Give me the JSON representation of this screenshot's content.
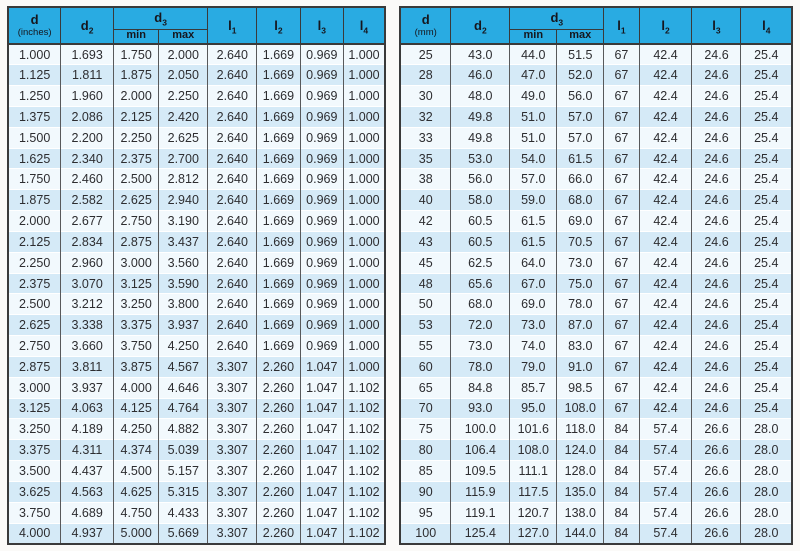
{
  "colors": {
    "header_bg": "#29ABE2",
    "row_light": "#F2F9FD",
    "row_blue": "#D5EAF7",
    "border_dark": "#3A3A3A",
    "page_bg": "#FBFAF8"
  },
  "tables": [
    {
      "id": "inches-table",
      "header": {
        "d_label": "d",
        "d_unit": "(inches)",
        "d2_label": "d",
        "d2_sub": "2",
        "d3_label": "d",
        "d3_sub": "3",
        "min_label": "min",
        "max_label": "max",
        "l1_label": "l",
        "l1_sub": "1",
        "l2_label": "l",
        "l2_sub": "2",
        "l3_label": "l",
        "l3_sub": "3",
        "l4_label": "l",
        "l4_sub": "4"
      },
      "rows": [
        [
          "1.000",
          "1.693",
          "1.750",
          "2.000",
          "2.640",
          "1.669",
          "0.969",
          "1.000"
        ],
        [
          "1.125",
          "1.811",
          "1.875",
          "2.050",
          "2.640",
          "1.669",
          "0.969",
          "1.000"
        ],
        [
          "1.250",
          "1.960",
          "2.000",
          "2.250",
          "2.640",
          "1.669",
          "0.969",
          "1.000"
        ],
        [
          "1.375",
          "2.086",
          "2.125",
          "2.420",
          "2.640",
          "1.669",
          "0.969",
          "1.000"
        ],
        [
          "1.500",
          "2.200",
          "2.250",
          "2.625",
          "2.640",
          "1.669",
          "0.969",
          "1.000"
        ],
        [
          "1.625",
          "2.340",
          "2.375",
          "2.700",
          "2.640",
          "1.669",
          "0.969",
          "1.000"
        ],
        [
          "1.750",
          "2.460",
          "2.500",
          "2.812",
          "2.640",
          "1.669",
          "0.969",
          "1.000"
        ],
        [
          "1.875",
          "2.582",
          "2.625",
          "2.940",
          "2.640",
          "1.669",
          "0.969",
          "1.000"
        ],
        [
          "2.000",
          "2.677",
          "2.750",
          "3.190",
          "2.640",
          "1.669",
          "0.969",
          "1.000"
        ],
        [
          "2.125",
          "2.834",
          "2.875",
          "3.437",
          "2.640",
          "1.669",
          "0.969",
          "1.000"
        ],
        [
          "2.250",
          "2.960",
          "3.000",
          "3.560",
          "2.640",
          "1.669",
          "0.969",
          "1.000"
        ],
        [
          "2.375",
          "3.070",
          "3.125",
          "3.590",
          "2.640",
          "1.669",
          "0.969",
          "1.000"
        ],
        [
          "2.500",
          "3.212",
          "3.250",
          "3.800",
          "2.640",
          "1.669",
          "0.969",
          "1.000"
        ],
        [
          "2.625",
          "3.338",
          "3.375",
          "3.937",
          "2.640",
          "1.669",
          "0.969",
          "1.000"
        ],
        [
          "2.750",
          "3.660",
          "3.750",
          "4.250",
          "2.640",
          "1.669",
          "0.969",
          "1.000"
        ],
        [
          "2.875",
          "3.811",
          "3.875",
          "4.567",
          "3.307",
          "2.260",
          "1.047",
          "1.000"
        ],
        [
          "3.000",
          "3.937",
          "4.000",
          "4.646",
          "3.307",
          "2.260",
          "1.047",
          "1.102"
        ],
        [
          "3.125",
          "4.063",
          "4.125",
          "4.764",
          "3.307",
          "2.260",
          "1.047",
          "1.102"
        ],
        [
          "3.250",
          "4.189",
          "4.250",
          "4.882",
          "3.307",
          "2.260",
          "1.047",
          "1.102"
        ],
        [
          "3.375",
          "4.311",
          "4.374",
          "5.039",
          "3.307",
          "2.260",
          "1.047",
          "1.102"
        ],
        [
          "3.500",
          "4.437",
          "4.500",
          "5.157",
          "3.307",
          "2.260",
          "1.047",
          "1.102"
        ],
        [
          "3.625",
          "4.563",
          "4.625",
          "5.315",
          "3.307",
          "2.260",
          "1.047",
          "1.102"
        ],
        [
          "3.750",
          "4.689",
          "4.750",
          "4.433",
          "3.307",
          "2.260",
          "1.047",
          "1.102"
        ],
        [
          "4.000",
          "4.937",
          "5.000",
          "5.669",
          "3.307",
          "2.260",
          "1.047",
          "1.102"
        ]
      ]
    },
    {
      "id": "mm-table",
      "header": {
        "d_label": "d",
        "d_unit": "(mm)",
        "d2_label": "d",
        "d2_sub": "2",
        "d3_label": "d",
        "d3_sub": "3",
        "min_label": "min",
        "max_label": "max",
        "l1_label": "l",
        "l1_sub": "1",
        "l2_label": "l",
        "l2_sub": "2",
        "l3_label": "l",
        "l3_sub": "3",
        "l4_label": "l",
        "l4_sub": "4"
      },
      "rows": [
        [
          "25",
          "43.0",
          "44.0",
          "51.5",
          "67",
          "42.4",
          "24.6",
          "25.4"
        ],
        [
          "28",
          "46.0",
          "47.0",
          "52.0",
          "67",
          "42.4",
          "24.6",
          "25.4"
        ],
        [
          "30",
          "48.0",
          "49.0",
          "56.0",
          "67",
          "42.4",
          "24.6",
          "25.4"
        ],
        [
          "32",
          "49.8",
          "51.0",
          "57.0",
          "67",
          "42.4",
          "24.6",
          "25.4"
        ],
        [
          "33",
          "49.8",
          "51.0",
          "57.0",
          "67",
          "42.4",
          "24.6",
          "25.4"
        ],
        [
          "35",
          "53.0",
          "54.0",
          "61.5",
          "67",
          "42.4",
          "24.6",
          "25.4"
        ],
        [
          "38",
          "56.0",
          "57.0",
          "66.0",
          "67",
          "42.4",
          "24.6",
          "25.4"
        ],
        [
          "40",
          "58.0",
          "59.0",
          "68.0",
          "67",
          "42.4",
          "24.6",
          "25.4"
        ],
        [
          "42",
          "60.5",
          "61.5",
          "69.0",
          "67",
          "42.4",
          "24.6",
          "25.4"
        ],
        [
          "43",
          "60.5",
          "61.5",
          "70.5",
          "67",
          "42.4",
          "24.6",
          "25.4"
        ],
        [
          "45",
          "62.5",
          "64.0",
          "73.0",
          "67",
          "42.4",
          "24.6",
          "25.4"
        ],
        [
          "48",
          "65.6",
          "67.0",
          "75.0",
          "67",
          "42.4",
          "24.6",
          "25.4"
        ],
        [
          "50",
          "68.0",
          "69.0",
          "78.0",
          "67",
          "42.4",
          "24.6",
          "25.4"
        ],
        [
          "53",
          "72.0",
          "73.0",
          "87.0",
          "67",
          "42.4",
          "24.6",
          "25.4"
        ],
        [
          "55",
          "73.0",
          "74.0",
          "83.0",
          "67",
          "42.4",
          "24.6",
          "25.4"
        ],
        [
          "60",
          "78.0",
          "79.0",
          "91.0",
          "67",
          "42.4",
          "24.6",
          "25.4"
        ],
        [
          "65",
          "84.8",
          "85.7",
          "98.5",
          "67",
          "42.4",
          "24.6",
          "25.4"
        ],
        [
          "70",
          "93.0",
          "95.0",
          "108.0",
          "67",
          "42.4",
          "24.6",
          "25.4"
        ],
        [
          "75",
          "100.0",
          "101.6",
          "118.0",
          "84",
          "57.4",
          "26.6",
          "28.0"
        ],
        [
          "80",
          "106.4",
          "108.0",
          "124.0",
          "84",
          "57.4",
          "26.6",
          "28.0"
        ],
        [
          "85",
          "109.5",
          "111.1",
          "128.0",
          "84",
          "57.4",
          "26.6",
          "28.0"
        ],
        [
          "90",
          "115.9",
          "117.5",
          "135.0",
          "84",
          "57.4",
          "26.6",
          "28.0"
        ],
        [
          "95",
          "119.1",
          "120.7",
          "138.0",
          "84",
          "57.4",
          "26.6",
          "28.0"
        ],
        [
          "100",
          "125.4",
          "127.0",
          "144.0",
          "84",
          "57.4",
          "26.6",
          "28.0"
        ]
      ]
    }
  ]
}
